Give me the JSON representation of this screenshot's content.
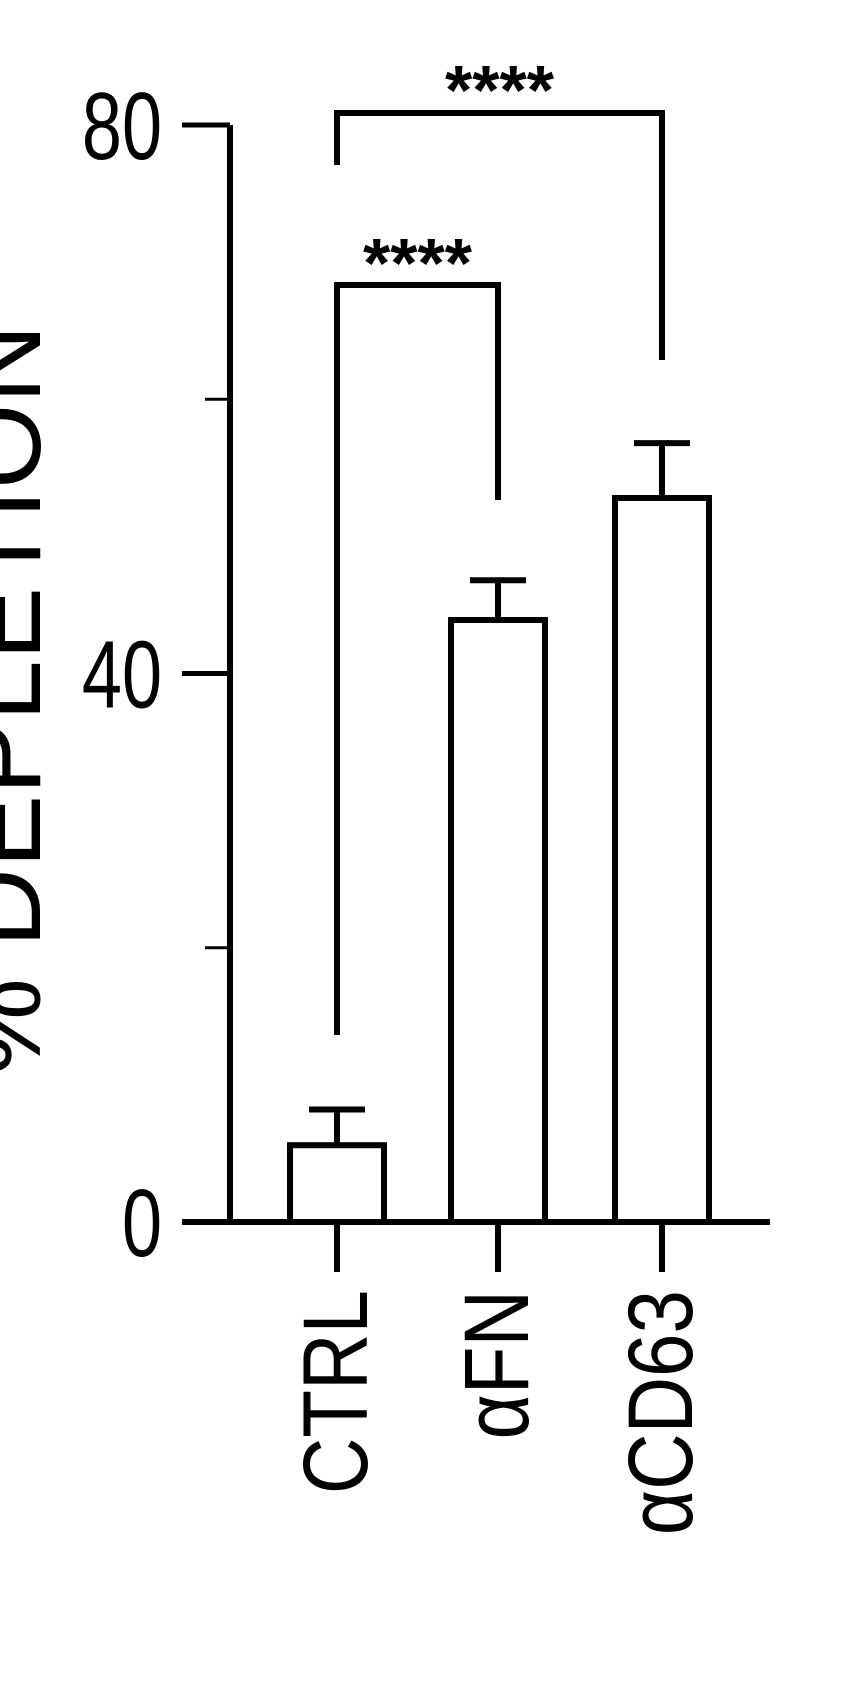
{
  "chart_data": {
    "type": "bar",
    "title": "",
    "xlabel": "",
    "ylabel": "% DEPLETION",
    "ylim": [
      0,
      80
    ],
    "yticks": [
      0,
      20,
      40,
      60,
      80
    ],
    "ytick_labels": [
      "0",
      "",
      "40",
      "",
      "80"
    ],
    "categories": [
      "CTRL",
      "αFN",
      "αCD63"
    ],
    "values": [
      5.6,
      43.9,
      52.8
    ],
    "errors": [
      2.6,
      2.9,
      4.0
    ],
    "grid": false,
    "bar_fill": "#ffffff",
    "bar_stroke": "#000000",
    "significance": [
      {
        "from": "CTRL",
        "to": "αFN",
        "label": "****"
      },
      {
        "from": "CTRL",
        "to": "αCD63",
        "label": "****"
      }
    ]
  }
}
